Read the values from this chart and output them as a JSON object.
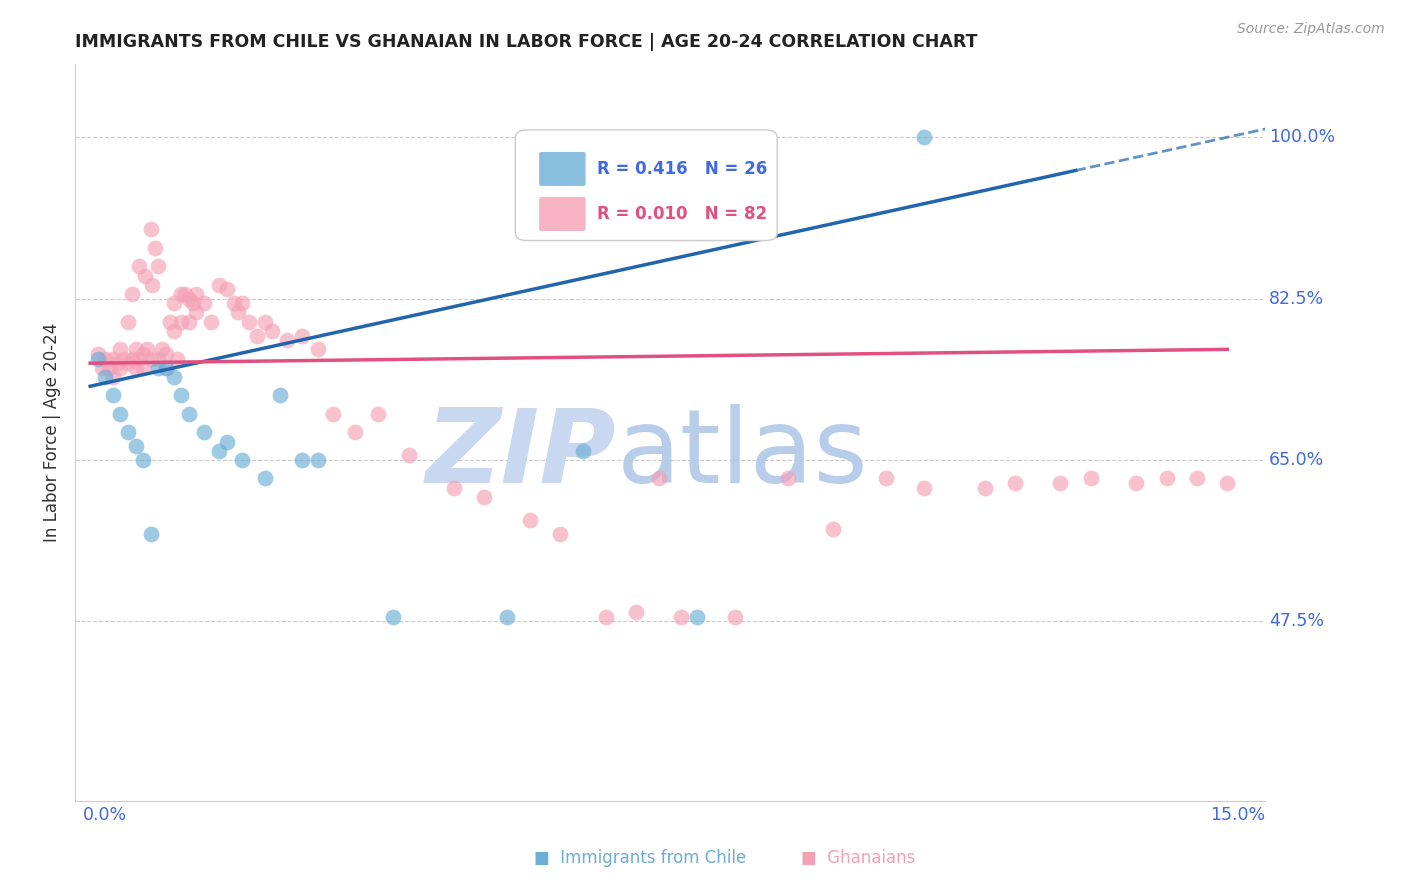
{
  "title": "IMMIGRANTS FROM CHILE VS GHANAIAN IN LABOR FORCE | AGE 20-24 CORRELATION CHART",
  "source": "Source: ZipAtlas.com",
  "ylabel": "In Labor Force | Age 20-24",
  "ylabel_ticks": [
    47.5,
    65.0,
    82.5,
    100.0
  ],
  "ylabel_tick_labels": [
    "47.5%",
    "65.0%",
    "82.5%",
    "100.0%"
  ],
  "xmin": 0.0,
  "xmax": 15.0,
  "ymin": 28.0,
  "ymax": 108.0,
  "legend_chile_r": "R = 0.416",
  "legend_chile_n": "N = 26",
  "legend_ghana_r": "R = 0.010",
  "legend_ghana_n": "N = 82",
  "color_chile": "#6baed6",
  "color_ghana": "#f4a0b5",
  "color_chile_line": "#2166ac",
  "color_ghana_line": "#e05080",
  "color_axis_labels": "#4169e1",
  "color_grid": "#cccccc",
  "watermark_color_zip": "#c8d8f0",
  "watermark_color_atlas": "#b0c8e8",
  "chile_x": [
    0.1,
    0.2,
    0.3,
    0.4,
    0.5,
    0.6,
    0.7,
    0.8,
    0.9,
    1.0,
    1.1,
    1.2,
    1.3,
    1.5,
    1.7,
    1.8,
    2.0,
    2.3,
    2.5,
    2.8,
    3.0,
    4.0,
    5.5,
    6.5,
    8.0,
    11.0
  ],
  "chile_y": [
    76.0,
    74.0,
    72.0,
    70.0,
    68.0,
    66.5,
    65.0,
    57.0,
    75.0,
    75.0,
    74.0,
    72.0,
    70.0,
    68.0,
    66.0,
    67.0,
    65.0,
    63.0,
    72.0,
    65.0,
    65.0,
    48.0,
    48.0,
    66.0,
    48.0,
    100.0
  ],
  "ghana_x": [
    0.1,
    0.15,
    0.2,
    0.25,
    0.3,
    0.3,
    0.35,
    0.4,
    0.4,
    0.45,
    0.5,
    0.5,
    0.55,
    0.6,
    0.6,
    0.65,
    0.7,
    0.7,
    0.75,
    0.8,
    0.8,
    0.85,
    0.9,
    0.9,
    0.95,
    1.0,
    1.0,
    1.05,
    1.1,
    1.1,
    1.15,
    1.2,
    1.2,
    1.3,
    1.3,
    1.4,
    1.4,
    1.5,
    1.6,
    1.7,
    1.8,
    1.9,
    2.0,
    2.1,
    2.2,
    2.3,
    2.4,
    2.6,
    2.8,
    3.0,
    3.2,
    3.5,
    3.8,
    4.2,
    4.8,
    5.2,
    5.8,
    6.2,
    6.8,
    7.2,
    7.8,
    8.5,
    9.2,
    9.8,
    10.5,
    11.0,
    11.8,
    12.2,
    12.8,
    13.2,
    13.8,
    14.2,
    14.6,
    15.0,
    7.5,
    0.55,
    0.65,
    0.72,
    0.82,
    1.25,
    1.35,
    1.95
  ],
  "ghana_y": [
    76.5,
    75.0,
    76.0,
    75.0,
    76.0,
    74.0,
    75.5,
    77.0,
    75.0,
    76.0,
    75.5,
    80.0,
    76.0,
    77.0,
    75.0,
    76.0,
    76.5,
    75.0,
    77.0,
    90.0,
    76.0,
    88.0,
    86.0,
    76.0,
    77.0,
    76.5,
    75.0,
    80.0,
    82.0,
    79.0,
    76.0,
    83.0,
    80.0,
    82.5,
    80.0,
    83.0,
    81.0,
    82.0,
    80.0,
    84.0,
    83.5,
    82.0,
    82.0,
    80.0,
    78.5,
    80.0,
    79.0,
    78.0,
    78.5,
    77.0,
    70.0,
    68.0,
    70.0,
    65.5,
    62.0,
    61.0,
    58.5,
    57.0,
    48.0,
    48.5,
    48.0,
    48.0,
    63.0,
    57.5,
    63.0,
    62.0,
    62.0,
    62.5,
    62.5,
    63.0,
    62.5,
    63.0,
    63.0,
    62.5,
    63.0,
    83.0,
    86.0,
    85.0,
    84.0,
    83.0,
    82.0,
    81.0
  ]
}
